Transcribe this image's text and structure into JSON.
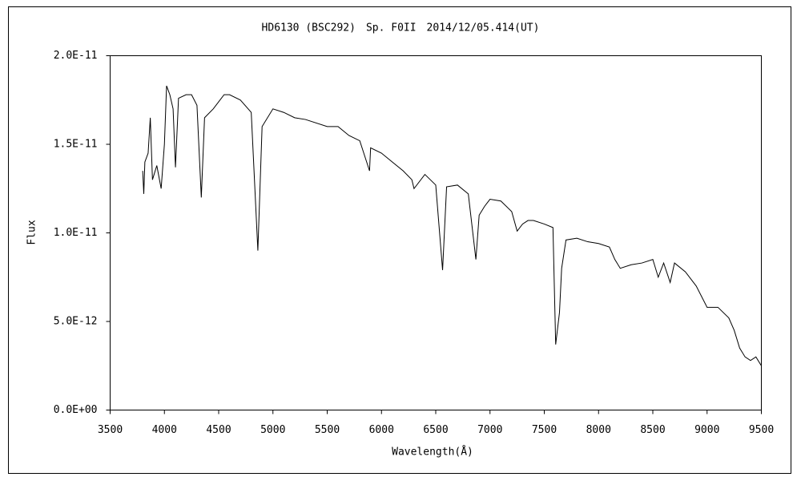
{
  "chart_data": {
    "type": "line",
    "title": "HD6130 (BSC292)　Sp. F0II　2014/12/05.414(UT)",
    "xlabel": "Wavelength(Å)",
    "ylabel": "Flux",
    "xlim": [
      3500,
      9500
    ],
    "xticks": [
      3500,
      4000,
      4500,
      5000,
      5500,
      6000,
      6500,
      7000,
      7500,
      8000,
      8500,
      9000,
      9500
    ],
    "ylim": [
      0,
      2e-11
    ],
    "yticks": [
      {
        "value": 0,
        "label": "0.0E+00"
      },
      {
        "value": 5e-12,
        "label": "5.0E-12"
      },
      {
        "value": 1e-11,
        "label": "1.0E-11"
      },
      {
        "value": 1.5e-11,
        "label": "1.5E-11"
      },
      {
        "value": 2e-11,
        "label": "2.0E-11"
      }
    ],
    "grid": false,
    "series": [
      {
        "color": "#000000",
        "x": [
          3800,
          3810,
          3820,
          3850,
          3870,
          3890,
          3930,
          3970,
          4000,
          4020,
          4050,
          4080,
          4102,
          4130,
          4200,
          4250,
          4300,
          4340,
          4370,
          4450,
          4550,
          4600,
          4700,
          4800,
          4861,
          4900,
          5000,
          5100,
          5200,
          5300,
          5500,
          5600,
          5700,
          5800,
          5890,
          5900,
          6000,
          6100,
          6200,
          6280,
          6300,
          6400,
          6500,
          6563,
          6600,
          6700,
          6800,
          6870,
          6900,
          6950,
          7000,
          7100,
          7200,
          7250,
          7300,
          7350,
          7400,
          7500,
          7580,
          7605,
          7640,
          7660,
          7700,
          7800,
          7900,
          8000,
          8100,
          8150,
          8200,
          8300,
          8400,
          8500,
          8550,
          8600,
          8660,
          8700,
          8800,
          8900,
          9000,
          9050,
          9100,
          9200,
          9250,
          9300,
          9350,
          9400,
          9450,
          9500
        ],
        "values": [
          1.35e-11,
          1.22e-11,
          1.4e-11,
          1.45e-11,
          1.65e-11,
          1.3e-11,
          1.38e-11,
          1.25e-11,
          1.5e-11,
          1.83e-11,
          1.78e-11,
          1.7e-11,
          1.37e-11,
          1.76e-11,
          1.78e-11,
          1.78e-11,
          1.72e-11,
          1.2e-11,
          1.65e-11,
          1.7e-11,
          1.78e-11,
          1.78e-11,
          1.75e-11,
          1.68e-11,
          9e-12,
          1.6e-11,
          1.7e-11,
          1.68e-11,
          1.65e-11,
          1.64e-11,
          1.6e-11,
          1.6e-11,
          1.55e-11,
          1.52e-11,
          1.35e-11,
          1.48e-11,
          1.45e-11,
          1.4e-11,
          1.35e-11,
          1.3e-11,
          1.25e-11,
          1.33e-11,
          1.27e-11,
          7.9e-12,
          1.26e-11,
          1.27e-11,
          1.22e-11,
          8.5e-12,
          1.1e-11,
          1.15e-11,
          1.19e-11,
          1.18e-11,
          1.12e-11,
          1.01e-11,
          1.05e-11,
          1.07e-11,
          1.07e-11,
          1.05e-11,
          1.03e-11,
          3.7e-12,
          5.5e-12,
          8e-12,
          9.6e-12,
          9.7e-12,
          9.5e-12,
          9.4e-12,
          9.2e-12,
          8.5e-12,
          8e-12,
          8.2e-12,
          8.3e-12,
          8.5e-12,
          7.5e-12,
          8.3e-12,
          7.2e-12,
          8.3e-12,
          7.8e-12,
          7e-12,
          5.8e-12,
          5.8e-12,
          5.8e-12,
          5.2e-12,
          4.5e-12,
          3.5e-12,
          3e-12,
          2.8e-12,
          3e-12,
          2.5e-12
        ]
      }
    ]
  }
}
